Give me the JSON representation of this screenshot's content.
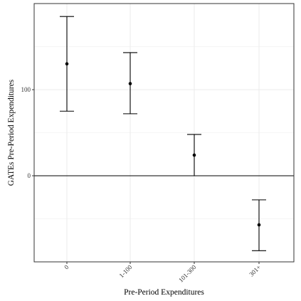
{
  "chart_data": {
    "type": "errorbar",
    "title": "",
    "xlabel": "Pre-Period Expenditures",
    "ylabel": "GATEs Pre-Period Expenditures",
    "categories": [
      "0",
      "1-100",
      "101-300",
      "301+"
    ],
    "points": [
      {
        "category": "0",
        "estimate": 130,
        "lower": 75,
        "upper": 185
      },
      {
        "category": "1-100",
        "estimate": 107,
        "lower": 72,
        "upper": 143
      },
      {
        "category": "101-300",
        "estimate": 24,
        "lower": 0,
        "upper": 48
      },
      {
        "category": "301+",
        "estimate": -57,
        "lower": -87,
        "upper": -28
      }
    ],
    "ylim": [
      -100,
      200
    ],
    "yticks": [
      0,
      100
    ],
    "yticks_minor": [
      -50,
      50,
      150
    ],
    "reference_line_y": 0,
    "grid": true,
    "legend": "none",
    "colors": {
      "mark": "#000000",
      "grid": "#ebebeb",
      "panel_border": "#333333",
      "background": "#ffffff"
    }
  }
}
